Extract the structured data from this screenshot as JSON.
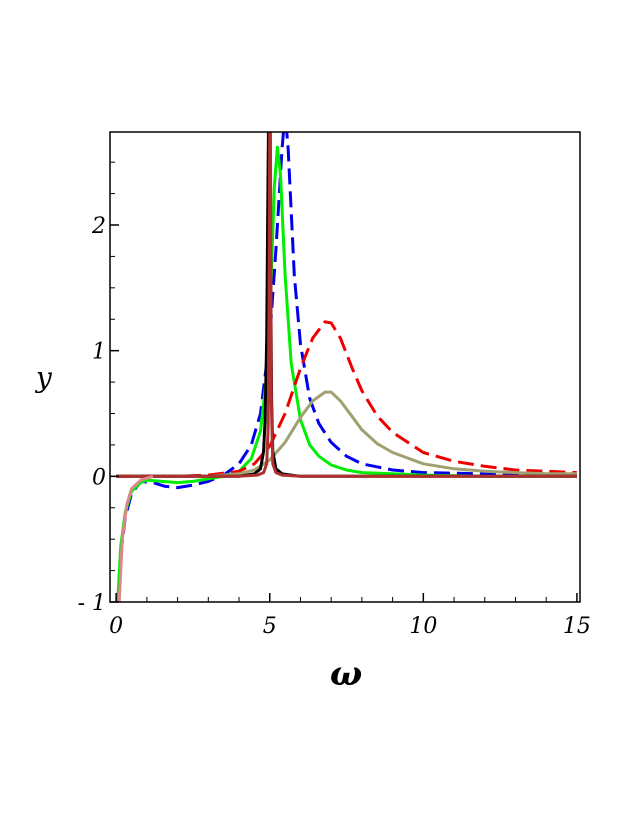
{
  "chart_data": {
    "type": "line",
    "xlabel": "ω",
    "ylabel": "y",
    "xlim": [
      -0.2,
      15.1
    ],
    "ylim": [
      -1.0,
      2.74
    ],
    "x_ticks": [
      {
        "value": 0,
        "label": "0"
      },
      {
        "value": 5,
        "label": "5"
      },
      {
        "value": 10,
        "label": "10"
      },
      {
        "value": 15,
        "label": "15"
      }
    ],
    "y_ticks": [
      {
        "value": -1,
        "label": "- 1"
      },
      {
        "value": 0,
        "label": "0"
      },
      {
        "value": 1,
        "label": "1"
      },
      {
        "value": 2,
        "label": "2"
      }
    ],
    "grid": false,
    "legend": "none",
    "series": [
      {
        "color": "#0000ee",
        "dash": "dashed",
        "x": [
          0.05,
          0.15,
          0.3,
          0.5,
          0.8,
          1.2,
          1.6,
          2.0,
          2.5,
          3.0,
          3.5,
          4.0,
          4.4,
          4.7,
          5.0,
          5.2,
          5.4,
          5.5,
          5.6,
          5.8,
          6.0,
          6.3,
          6.6,
          7.0,
          7.5,
          8.0,
          9.0,
          10.0,
          12.0,
          15.0
        ],
        "y": [
          -1.0,
          -0.62,
          -0.32,
          -0.14,
          -0.04,
          -0.05,
          -0.08,
          -0.09,
          -0.07,
          -0.04,
          0.01,
          0.1,
          0.25,
          0.5,
          1.1,
          1.8,
          2.6,
          2.9,
          2.6,
          1.6,
          1.05,
          0.62,
          0.42,
          0.27,
          0.16,
          0.1,
          0.05,
          0.03,
          0.02,
          0.01
        ]
      },
      {
        "color": "#00ee00",
        "dash": "solid",
        "x": [
          0.05,
          0.15,
          0.3,
          0.5,
          0.8,
          1.0,
          1.5,
          2.0,
          2.5,
          3.0,
          3.5,
          4.0,
          4.4,
          4.7,
          4.9,
          5.05,
          5.15,
          5.25,
          5.35,
          5.5,
          5.7,
          6.0,
          6.3,
          6.6,
          7.0,
          7.5,
          8.0,
          9.0,
          10.0,
          12.0,
          15.0
        ],
        "y": [
          -1.0,
          -0.55,
          -0.28,
          -0.12,
          -0.05,
          -0.03,
          -0.04,
          -0.05,
          -0.04,
          -0.02,
          0.0,
          0.04,
          0.14,
          0.36,
          0.8,
          1.6,
          2.3,
          2.62,
          2.4,
          1.6,
          0.9,
          0.45,
          0.25,
          0.16,
          0.09,
          0.05,
          0.03,
          0.02,
          0.01,
          0.0,
          0.0
        ]
      },
      {
        "color": "#ee0000",
        "dash": "dashed",
        "x": [
          0.0,
          1.0,
          2.0,
          3.0,
          4.0,
          4.5,
          5.0,
          5.5,
          6.0,
          6.4,
          6.8,
          7.0,
          7.3,
          7.7,
          8.0,
          8.5,
          9.0,
          10.0,
          11.0,
          12.0,
          13.0,
          14.0,
          15.0
        ],
        "y": [
          0.0,
          0.0,
          0.0,
          0.01,
          0.04,
          0.1,
          0.24,
          0.5,
          0.86,
          1.1,
          1.23,
          1.22,
          1.1,
          0.85,
          0.68,
          0.48,
          0.35,
          0.19,
          0.12,
          0.08,
          0.05,
          0.04,
          0.03
        ]
      },
      {
        "color": "#a0a070",
        "dash": "solid",
        "x": [
          0.0,
          1.0,
          2.0,
          3.0,
          4.0,
          4.5,
          5.0,
          5.5,
          6.0,
          6.4,
          6.8,
          7.0,
          7.3,
          7.7,
          8.0,
          8.5,
          9.0,
          10.0,
          11.0,
          12.0,
          13.0,
          14.0,
          15.0
        ],
        "y": [
          0.0,
          0.0,
          0.0,
          0.0,
          0.02,
          0.05,
          0.13,
          0.27,
          0.47,
          0.6,
          0.67,
          0.67,
          0.6,
          0.47,
          0.37,
          0.26,
          0.19,
          0.1,
          0.06,
          0.04,
          0.03,
          0.02,
          0.02
        ]
      },
      {
        "color": "#000000",
        "dash": "solid",
        "x": [
          0.0,
          2.0,
          4.0,
          4.5,
          4.7,
          4.8,
          4.85,
          4.9,
          4.93,
          4.96,
          5.0,
          5.03,
          5.06,
          5.1,
          5.2,
          5.4,
          6.0,
          8.0,
          15.0
        ],
        "y": [
          0.0,
          0.0,
          0.0,
          0.02,
          0.06,
          0.2,
          0.45,
          1.1,
          2.0,
          2.8,
          2.8,
          1.6,
          0.6,
          0.2,
          0.06,
          0.02,
          0.0,
          0.0,
          0.0
        ]
      },
      {
        "color": "#b03030",
        "dash": "solid",
        "x": [
          0.0,
          0.5,
          1.0,
          2.0,
          4.0,
          4.6,
          4.8,
          4.9,
          4.95,
          4.98,
          5.0,
          5.02,
          5.05,
          5.1,
          5.2,
          5.4,
          6.0,
          8.0,
          15.0
        ],
        "y": [
          0.0,
          0.0,
          0.0,
          0.0,
          0.0,
          0.01,
          0.03,
          0.1,
          0.4,
          1.5,
          2.8,
          2.8,
          0.6,
          0.1,
          0.03,
          0.01,
          0.0,
          0.0,
          0.0
        ]
      },
      {
        "color": "#dd8888",
        "dash": "solid",
        "x": [
          0.1,
          0.2,
          0.35,
          0.5,
          0.8,
          1.2
        ],
        "y": [
          -1.0,
          -0.5,
          -0.22,
          -0.1,
          -0.03,
          0.0
        ]
      }
    ]
  }
}
